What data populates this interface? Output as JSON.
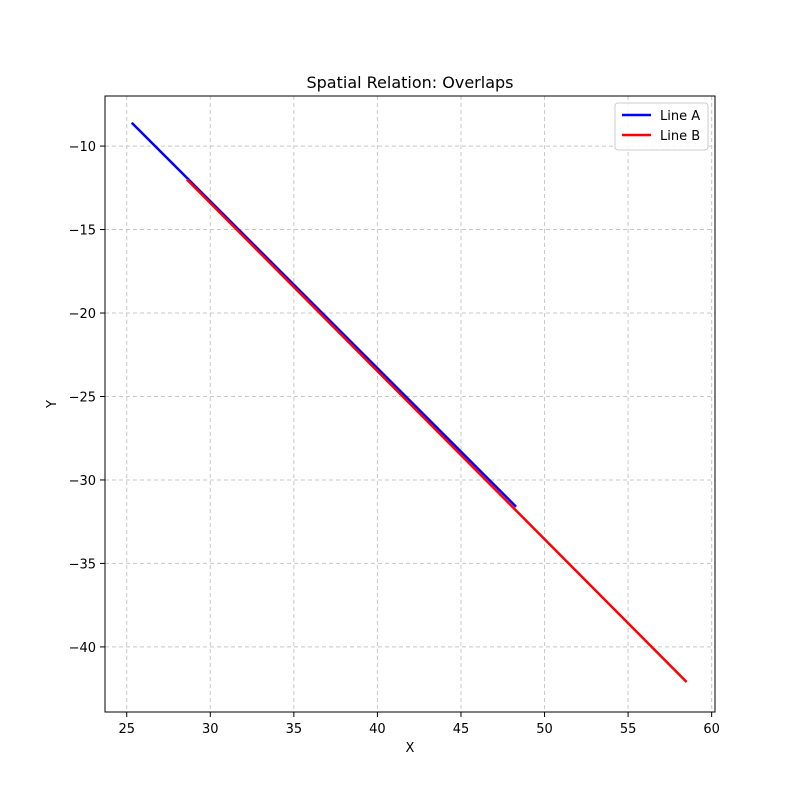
{
  "chart_data": {
    "type": "line",
    "title": "Spatial Relation: Overlaps",
    "xlabel": "X",
    "ylabel": "Y",
    "xlim": [
      23.7,
      60.2
    ],
    "ylim": [
      -43.9,
      -7.0
    ],
    "xticks": [
      25,
      30,
      35,
      40,
      45,
      50,
      55,
      60
    ],
    "yticks": [
      -10,
      -15,
      -20,
      -25,
      -30,
      -35,
      -40
    ],
    "xtick_labels": [
      "25",
      "30",
      "35",
      "40",
      "45",
      "50",
      "55",
      "60"
    ],
    "ytick_labels": [
      "−10",
      "−15",
      "−20",
      "−25",
      "−30",
      "−35",
      "−40"
    ],
    "grid": true,
    "legend_position": "top-right",
    "series": [
      {
        "name": "Line A",
        "color": "#0000ff",
        "x": [
          25.3,
          48.3
        ],
        "y": [
          -8.6,
          -31.6
        ]
      },
      {
        "name": "Line B",
        "color": "#ff0000",
        "x": [
          28.6,
          58.5
        ],
        "y": [
          -12.0,
          -42.1
        ]
      }
    ]
  }
}
